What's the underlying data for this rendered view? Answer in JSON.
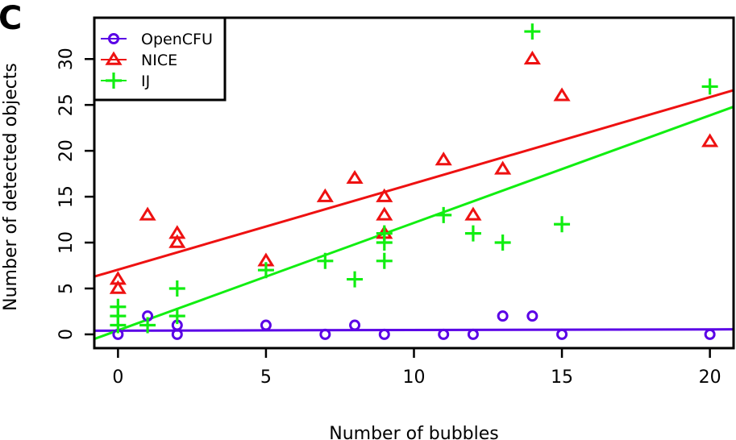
{
  "panel_label": "C",
  "colors": {
    "OpenCFU": "#5a00e6",
    "NICE": "#ee1111",
    "IJ": "#11ee11"
  },
  "chart_data": {
    "type": "scatter",
    "title": "",
    "xlabel": "Number of bubbles",
    "ylabel": "Number of detected objects",
    "xlim": [
      -0.8,
      20.8
    ],
    "ylim": [
      -1.5,
      34.5
    ],
    "xticks": [
      0,
      5,
      10,
      15,
      20
    ],
    "yticks": [
      0,
      5,
      10,
      15,
      20,
      25,
      30
    ],
    "xtick_labels": [
      "0",
      "5",
      "10",
      "15",
      "20"
    ],
    "ytick_labels": [
      "0",
      "5",
      "10",
      "15",
      "20",
      "25",
      "30"
    ],
    "grid": false,
    "legend_position": "top-left",
    "series": [
      {
        "name": "OpenCFU",
        "marker": "circle",
        "points": [
          [
            0,
            0
          ],
          [
            1,
            2
          ],
          [
            2,
            0
          ],
          [
            2,
            1
          ],
          [
            5,
            1
          ],
          [
            7,
            0
          ],
          [
            8,
            1
          ],
          [
            9,
            0
          ],
          [
            11,
            0
          ],
          [
            12,
            0
          ],
          [
            13,
            2
          ],
          [
            14,
            2
          ],
          [
            15,
            0
          ],
          [
            20,
            0
          ]
        ],
        "fit": [
          [
            -0.8,
            0.4
          ],
          [
            20.8,
            0.55
          ]
        ]
      },
      {
        "name": "NICE",
        "marker": "triangle",
        "points": [
          [
            0,
            5
          ],
          [
            0,
            6
          ],
          [
            1,
            13
          ],
          [
            2,
            10
          ],
          [
            2,
            11
          ],
          [
            5,
            8
          ],
          [
            7,
            15
          ],
          [
            8,
            17
          ],
          [
            9,
            11
          ],
          [
            9,
            13
          ],
          [
            9,
            15
          ],
          [
            11,
            19
          ],
          [
            12,
            13
          ],
          [
            13,
            18
          ],
          [
            14,
            30
          ],
          [
            15,
            26
          ],
          [
            20,
            21
          ]
        ],
        "fit": [
          [
            -0.8,
            6.3
          ],
          [
            20.8,
            26.6
          ]
        ]
      },
      {
        "name": "IJ",
        "marker": "plus",
        "points": [
          [
            0,
            1
          ],
          [
            0,
            2
          ],
          [
            0,
            3
          ],
          [
            1,
            1
          ],
          [
            2,
            2
          ],
          [
            2,
            5
          ],
          [
            5,
            7
          ],
          [
            7,
            8
          ],
          [
            8,
            6
          ],
          [
            9,
            8
          ],
          [
            9,
            10
          ],
          [
            9,
            11
          ],
          [
            11,
            13
          ],
          [
            12,
            11
          ],
          [
            13,
            10
          ],
          [
            14,
            33
          ],
          [
            15,
            12
          ],
          [
            20,
            27
          ]
        ],
        "fit": [
          [
            -0.8,
            -0.5
          ],
          [
            20.8,
            24.8
          ]
        ]
      }
    ]
  }
}
